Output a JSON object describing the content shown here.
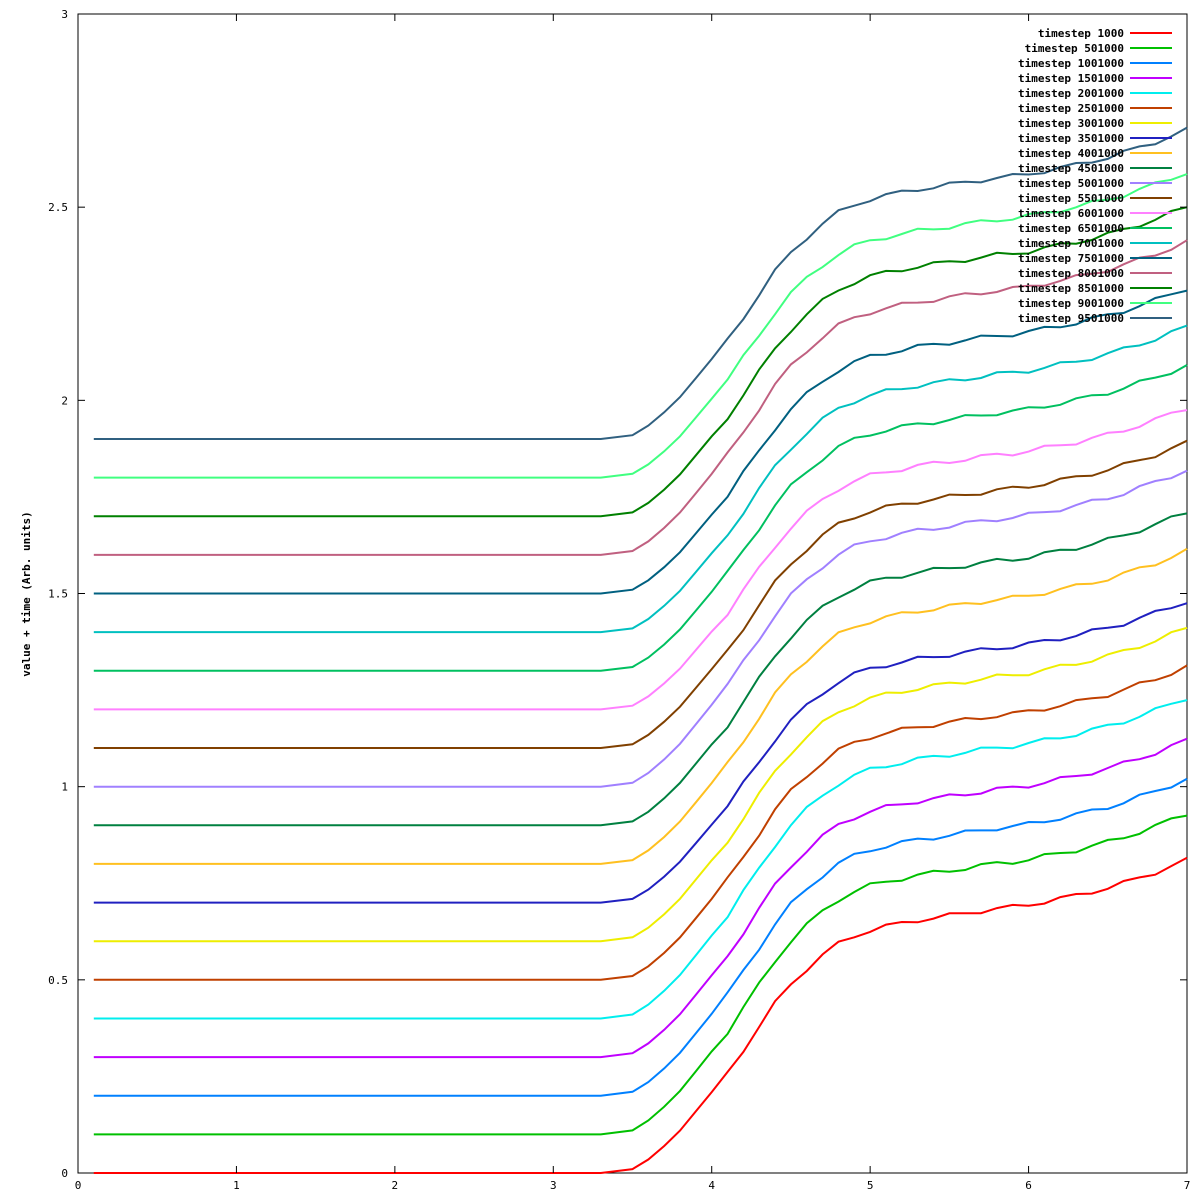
{
  "chart_data": {
    "type": "line",
    "ylabel": "value + time (Arb. units)",
    "xlabel": "",
    "title": "",
    "xlim": [
      0,
      7
    ],
    "ylim": [
      0,
      3
    ],
    "x_ticks": [
      0,
      1,
      2,
      3,
      4,
      5,
      6,
      7
    ],
    "y_ticks": [
      0,
      0.5,
      1,
      1.5,
      2,
      2.5,
      3
    ],
    "x_tick_labels": [
      "0",
      "1",
      "2",
      "3",
      "4",
      "5",
      "6",
      "7"
    ],
    "y_tick_labels": [
      "0",
      "0.5",
      "1",
      "1.5",
      "2",
      "2.5",
      "3"
    ],
    "grid": false,
    "legend_position": "top-right",
    "x": [
      0.1,
      3.0,
      3.3,
      3.5,
      3.6,
      3.7,
      3.8,
      3.9,
      4.0,
      4.1,
      4.2,
      4.3,
      4.4,
      4.5,
      4.6,
      4.7,
      4.8,
      4.9,
      5.0,
      5.1,
      5.2,
      5.3,
      5.4,
      5.5,
      5.6,
      5.7,
      5.8,
      5.9,
      6.0,
      6.1,
      6.2,
      6.3,
      6.4,
      6.5,
      6.6,
      6.7,
      6.8,
      6.9,
      7.0
    ],
    "base_profile": [
      0,
      0,
      0,
      0.01,
      0.035,
      0.07,
      0.11,
      0.16,
      0.21,
      0.26,
      0.32,
      0.38,
      0.44,
      0.49,
      0.53,
      0.565,
      0.595,
      0.615,
      0.63,
      0.64,
      0.648,
      0.656,
      0.662,
      0.668,
      0.674,
      0.68,
      0.686,
      0.69,
      0.696,
      0.704,
      0.712,
      0.72,
      0.73,
      0.74,
      0.752,
      0.766,
      0.78,
      0.796,
      0.812
    ],
    "series": [
      {
        "name": "timestep 1000",
        "color": "#ff0000",
        "offset": 0.0,
        "end_value": 0.81
      },
      {
        "name": "timestep 501000",
        "color": "#00c000",
        "offset": 0.1,
        "end_value": 0.93
      },
      {
        "name": "timestep 1001000",
        "color": "#0080ff",
        "offset": 0.2,
        "end_value": 1.02
      },
      {
        "name": "timestep 1501000",
        "color": "#c000ff",
        "offset": 0.3,
        "end_value": 1.12
      },
      {
        "name": "timestep 2001000",
        "color": "#00eeee",
        "offset": 0.4,
        "end_value": 1.23
      },
      {
        "name": "timestep 2501000",
        "color": "#c04000",
        "offset": 0.5,
        "end_value": 1.31
      },
      {
        "name": "timestep 3001000",
        "color": "#eeee00",
        "offset": 0.6,
        "end_value": 1.41
      },
      {
        "name": "timestep 3501000",
        "color": "#2020c0",
        "offset": 0.7,
        "end_value": 1.48
      },
      {
        "name": "timestep 4001000",
        "color": "#ffc020",
        "offset": 0.8,
        "end_value": 1.61
      },
      {
        "name": "timestep 4501000",
        "color": "#008040",
        "offset": 0.9,
        "end_value": 1.71
      },
      {
        "name": "timestep 5001000",
        "color": "#a080ff",
        "offset": 1.0,
        "end_value": 1.82
      },
      {
        "name": "timestep 5501000",
        "color": "#804000",
        "offset": 1.1,
        "end_value": 1.89
      },
      {
        "name": "timestep 6001000",
        "color": "#ff80ff",
        "offset": 1.2,
        "end_value": 1.98
      },
      {
        "name": "timestep 6501000",
        "color": "#00c060",
        "offset": 1.3,
        "end_value": 2.09
      },
      {
        "name": "timestep 7001000",
        "color": "#00c0c0",
        "offset": 1.4,
        "end_value": 2.19
      },
      {
        "name": "timestep 7501000",
        "color": "#006080",
        "offset": 1.5,
        "end_value": 2.29
      },
      {
        "name": "timestep 8001000",
        "color": "#c06080",
        "offset": 1.6,
        "end_value": 2.41
      },
      {
        "name": "timestep 8501000",
        "color": "#008000",
        "offset": 1.7,
        "end_value": 2.5
      },
      {
        "name": "timestep 9001000",
        "color": "#40ff80",
        "offset": 1.8,
        "end_value": 2.59
      },
      {
        "name": "timestep 9501000",
        "color": "#306080",
        "offset": 1.9,
        "end_value": 2.7
      }
    ]
  }
}
